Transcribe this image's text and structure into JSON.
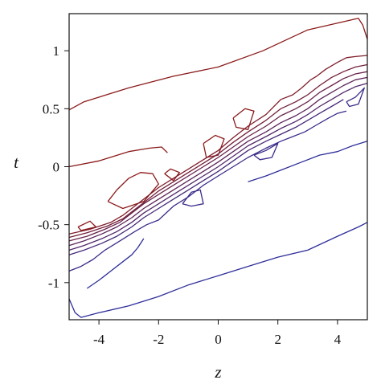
{
  "chart_data": {
    "type": "contour",
    "xlabel": "z",
    "ylabel": "t",
    "xlim": [
      -5,
      5
    ],
    "ylim": [
      -1.32,
      1.32
    ],
    "x_ticks": [
      -4,
      -2,
      0,
      2,
      4
    ],
    "x_tick_labels": [
      "-4",
      "-2",
      "0",
      "2",
      "4"
    ],
    "y_ticks": [
      1,
      0.5,
      0,
      -0.5,
      -1
    ],
    "y_tick_labels": [
      "1",
      "0.5",
      "0",
      "-0.5",
      "-1"
    ],
    "grid": false,
    "legend": false,
    "colors": {
      "high": "#8b1a1a",
      "low": "#2e2e9a",
      "axis": "#111111"
    },
    "contours": [
      {
        "level_rank": 0,
        "points": [
          [
            -5,
            0.49
          ],
          [
            -4.5,
            0.56
          ],
          [
            -3,
            0.68
          ],
          [
            -1.5,
            0.78
          ],
          [
            0,
            0.86
          ],
          [
            1.5,
            1.0
          ],
          [
            3,
            1.18
          ],
          [
            4.7,
            1.28
          ],
          [
            4.85,
            1.22
          ],
          [
            5,
            1.1
          ]
        ]
      },
      {
        "level_rank": 0,
        "points": [
          [
            -5,
            0.0
          ],
          [
            -4,
            0.05
          ],
          [
            -3,
            0.13
          ],
          [
            -2.3,
            0.16
          ],
          [
            -1.9,
            0.17
          ],
          [
            -1.7,
            0.12
          ]
        ]
      },
      {
        "level_rank": 0,
        "points": [
          [
            -3.7,
            -0.3
          ],
          [
            -3.4,
            -0.2
          ],
          [
            -3.0,
            -0.1
          ],
          [
            -2.6,
            -0.05
          ],
          [
            -2.2,
            -0.06
          ],
          [
            -2.0,
            -0.15
          ],
          [
            -2.5,
            -0.3
          ],
          [
            -3.2,
            -0.36
          ],
          [
            -3.7,
            -0.3
          ]
        ]
      },
      {
        "level_rank": 0,
        "points": [
          [
            -1.8,
            -0.06
          ],
          [
            -1.6,
            -0.02
          ],
          [
            -1.3,
            -0.05
          ],
          [
            -1.5,
            -0.12
          ],
          [
            -1.8,
            -0.06
          ]
        ]
      },
      {
        "level_rank": 0,
        "points": [
          [
            -0.5,
            0.2
          ],
          [
            -0.1,
            0.27
          ],
          [
            0.2,
            0.24
          ],
          [
            0.0,
            0.1
          ],
          [
            -0.4,
            0.08
          ],
          [
            -0.5,
            0.2
          ]
        ]
      },
      {
        "level_rank": 0,
        "points": [
          [
            0.5,
            0.42
          ],
          [
            0.9,
            0.5
          ],
          [
            1.2,
            0.48
          ],
          [
            1.0,
            0.32
          ],
          [
            0.6,
            0.34
          ],
          [
            0.5,
            0.42
          ]
        ]
      },
      {
        "level_rank": 0,
        "points": [
          [
            -4.7,
            -0.52
          ],
          [
            -4.3,
            -0.47
          ],
          [
            -4.1,
            -0.52
          ],
          [
            -4.6,
            -0.55
          ],
          [
            -4.7,
            -0.52
          ]
        ]
      },
      {
        "level_rank": 1,
        "points": [
          [
            -5,
            -0.58
          ],
          [
            -4.3,
            -0.54
          ],
          [
            -3.6,
            -0.48
          ],
          [
            -3.2,
            -0.42
          ],
          [
            -2.8,
            -0.34
          ],
          [
            -2.4,
            -0.26
          ],
          [
            -2.0,
            -0.18
          ],
          [
            -1.5,
            -0.1
          ],
          [
            -1.0,
            -0.02
          ],
          [
            -0.5,
            0.06
          ],
          [
            0,
            0.14
          ],
          [
            0.5,
            0.25
          ],
          [
            1.0,
            0.35
          ],
          [
            1.6,
            0.45
          ],
          [
            2.1,
            0.58
          ],
          [
            2.5,
            0.62
          ],
          [
            2.8,
            0.68
          ],
          [
            3.1,
            0.75
          ],
          [
            3.3,
            0.78
          ],
          [
            3.6,
            0.84
          ],
          [
            4.0,
            0.9
          ],
          [
            4.3,
            0.94
          ],
          [
            4.6,
            0.95
          ],
          [
            5,
            0.96
          ]
        ]
      },
      {
        "level_rank": 2,
        "points": [
          [
            -5,
            -0.61
          ],
          [
            -4.4,
            -0.57
          ],
          [
            -3.7,
            -0.51
          ],
          [
            -3.2,
            -0.45
          ],
          [
            -2.8,
            -0.37
          ],
          [
            -2.4,
            -0.29
          ],
          [
            -2.0,
            -0.21
          ],
          [
            -1.5,
            -0.13
          ],
          [
            -1.0,
            -0.05
          ],
          [
            -0.5,
            0.03
          ],
          [
            0,
            0.11
          ],
          [
            0.5,
            0.21
          ],
          [
            1.0,
            0.3
          ],
          [
            1.6,
            0.4
          ],
          [
            2.1,
            0.5
          ],
          [
            2.6,
            0.56
          ],
          [
            3.0,
            0.62
          ],
          [
            3.4,
            0.7
          ],
          [
            3.8,
            0.77
          ],
          [
            4.2,
            0.82
          ],
          [
            4.6,
            0.86
          ],
          [
            5,
            0.88
          ]
        ]
      },
      {
        "level_rank": 3,
        "points": [
          [
            -5,
            -0.64
          ],
          [
            -4.4,
            -0.6
          ],
          [
            -3.8,
            -0.54
          ],
          [
            -3.3,
            -0.48
          ],
          [
            -2.9,
            -0.4
          ],
          [
            -2.5,
            -0.32
          ],
          [
            -2.0,
            -0.24
          ],
          [
            -1.5,
            -0.16
          ],
          [
            -1.0,
            -0.08
          ],
          [
            -0.5,
            0.0
          ],
          [
            0,
            0.08
          ],
          [
            0.5,
            0.17
          ],
          [
            1.0,
            0.26
          ],
          [
            1.6,
            0.35
          ],
          [
            2.1,
            0.44
          ],
          [
            2.6,
            0.5
          ],
          [
            3.0,
            0.56
          ],
          [
            3.4,
            0.64
          ],
          [
            3.8,
            0.7
          ],
          [
            4.2,
            0.76
          ],
          [
            4.6,
            0.8
          ],
          [
            5,
            0.82
          ]
        ]
      },
      {
        "level_rank": 4,
        "points": [
          [
            -5,
            -0.68
          ],
          [
            -4.5,
            -0.64
          ],
          [
            -3.9,
            -0.58
          ],
          [
            -3.4,
            -0.52
          ],
          [
            -2.9,
            -0.44
          ],
          [
            -2.5,
            -0.36
          ],
          [
            -2.0,
            -0.28
          ],
          [
            -1.5,
            -0.2
          ],
          [
            -1.0,
            -0.12
          ],
          [
            -0.5,
            -0.04
          ],
          [
            0,
            0.04
          ],
          [
            0.5,
            0.13
          ],
          [
            1.0,
            0.22
          ],
          [
            1.6,
            0.3
          ],
          [
            2.1,
            0.38
          ],
          [
            2.6,
            0.44
          ],
          [
            3.0,
            0.5
          ],
          [
            3.4,
            0.58
          ],
          [
            3.8,
            0.64
          ],
          [
            4.2,
            0.7
          ],
          [
            4.6,
            0.75
          ],
          [
            5,
            0.77
          ]
        ]
      },
      {
        "level_rank": 5,
        "points": [
          [
            -5,
            -0.72
          ],
          [
            -4.5,
            -0.68
          ],
          [
            -3.9,
            -0.62
          ],
          [
            -3.4,
            -0.56
          ],
          [
            -2.9,
            -0.48
          ],
          [
            -2.5,
            -0.4
          ],
          [
            -2.0,
            -0.32
          ],
          [
            -1.5,
            -0.24
          ],
          [
            -1.0,
            -0.16
          ],
          [
            -0.5,
            -0.08
          ],
          [
            0,
            0.0
          ],
          [
            0.5,
            0.09
          ],
          [
            1.0,
            0.18
          ],
          [
            1.6,
            0.26
          ],
          [
            2.1,
            0.33
          ],
          [
            2.6,
            0.39
          ],
          [
            3.0,
            0.45
          ],
          [
            3.4,
            0.52
          ],
          [
            3.8,
            0.58
          ],
          [
            4.2,
            0.64
          ],
          [
            4.6,
            0.69
          ],
          [
            5,
            0.72
          ]
        ]
      },
      {
        "level_rank": 6,
        "points": [
          [
            -5,
            -0.76
          ],
          [
            -4.5,
            -0.72
          ],
          [
            -3.9,
            -0.66
          ],
          [
            -3.4,
            -0.6
          ],
          [
            -2.9,
            -0.52
          ],
          [
            -2.5,
            -0.44
          ],
          [
            -2.0,
            -0.36
          ],
          [
            -1.5,
            -0.28
          ],
          [
            -1.0,
            -0.2
          ],
          [
            -0.5,
            -0.12
          ],
          [
            0,
            -0.04
          ],
          [
            0.5,
            0.05
          ],
          [
            1.0,
            0.14
          ],
          [
            1.6,
            0.22
          ],
          [
            2.1,
            0.28
          ],
          [
            2.6,
            0.34
          ],
          [
            3.0,
            0.4
          ],
          [
            3.4,
            0.46
          ],
          [
            3.8,
            0.52
          ],
          [
            4.2,
            0.58
          ]
        ]
      },
      {
        "level_rank": 7,
        "points": [
          [
            -5,
            -0.9
          ],
          [
            -4.6,
            -0.86
          ],
          [
            -4.2,
            -0.8
          ],
          [
            -3.8,
            -0.72
          ],
          [
            -3.3,
            -0.64
          ],
          [
            -2.8,
            -0.56
          ],
          [
            -2.4,
            -0.5
          ],
          [
            -2.0,
            -0.46
          ],
          [
            -1.5,
            -0.34
          ],
          [
            -1.0,
            -0.26
          ],
          [
            -0.5,
            -0.16
          ],
          [
            0,
            -0.08
          ],
          [
            0.5,
            0.0
          ],
          [
            1.0,
            0.08
          ],
          [
            1.6,
            0.16
          ],
          [
            2.1,
            0.22
          ],
          [
            2.5,
            0.26
          ],
          [
            2.9,
            0.3
          ],
          [
            3.3,
            0.36
          ],
          [
            3.7,
            0.42
          ],
          [
            4.0,
            0.46
          ],
          [
            4.3,
            0.48
          ]
        ]
      },
      {
        "level_rank": 7,
        "points": [
          [
            -1.2,
            -0.32
          ],
          [
            -0.9,
            -0.22
          ],
          [
            -0.6,
            -0.2
          ],
          [
            -0.5,
            -0.32
          ],
          [
            -0.9,
            -0.34
          ],
          [
            -1.2,
            -0.32
          ]
        ]
      },
      {
        "level_rank": 7,
        "points": [
          [
            1.2,
            0.1
          ],
          [
            1.6,
            0.14
          ],
          [
            2.0,
            0.2
          ],
          [
            1.8,
            0.08
          ],
          [
            1.4,
            0.06
          ],
          [
            1.2,
            0.1
          ]
        ]
      },
      {
        "level_rank": 7,
        "points": [
          [
            4.3,
            0.56
          ],
          [
            4.6,
            0.6
          ],
          [
            4.9,
            0.68
          ],
          [
            4.7,
            0.54
          ],
          [
            4.4,
            0.52
          ],
          [
            4.3,
            0.56
          ]
        ]
      },
      {
        "level_rank": 8,
        "points": [
          [
            -4.4,
            -1.05
          ],
          [
            -4.0,
            -0.98
          ],
          [
            -3.6,
            -0.9
          ],
          [
            -3.2,
            -0.82
          ],
          [
            -2.9,
            -0.76
          ],
          [
            -2.7,
            -0.7
          ],
          [
            -2.5,
            -0.62
          ]
        ]
      },
      {
        "level_rank": 8,
        "points": [
          [
            1.0,
            -0.13
          ],
          [
            1.6,
            -0.08
          ],
          [
            2.2,
            -0.02
          ],
          [
            2.8,
            0.04
          ],
          [
            3.4,
            0.1
          ],
          [
            4.0,
            0.13
          ],
          [
            4.5,
            0.18
          ],
          [
            5,
            0.22
          ]
        ]
      },
      {
        "level_rank": 8,
        "points": [
          [
            -5,
            -1.14
          ],
          [
            -4.8,
            -1.26
          ],
          [
            -4.6,
            -1.3
          ],
          [
            -4,
            -1.26
          ],
          [
            -3,
            -1.2
          ],
          [
            -2,
            -1.12
          ],
          [
            -1,
            -1.02
          ],
          [
            0,
            -0.94
          ],
          [
            1,
            -0.86
          ],
          [
            2,
            -0.78
          ],
          [
            3,
            -0.72
          ],
          [
            4,
            -0.6
          ],
          [
            4.7,
            -0.52
          ],
          [
            5,
            -0.48
          ]
        ]
      }
    ]
  }
}
